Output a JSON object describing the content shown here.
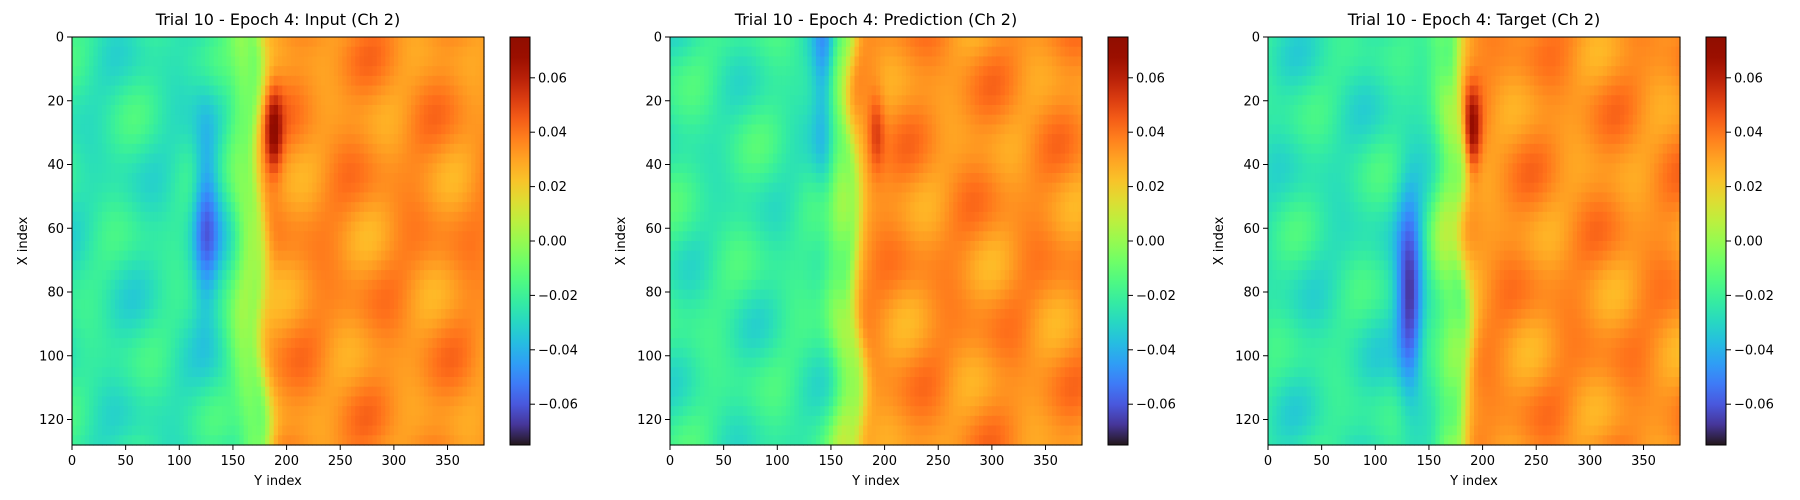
{
  "chart_data": [
    {
      "type": "heatmap",
      "title": "Trial 10 - Epoch 4: Input (Ch 2)",
      "xlabel": "Y index",
      "ylabel": "X index",
      "xlim": [
        0,
        384
      ],
      "ylim": [
        128,
        0
      ],
      "xticks": [
        "0",
        "50",
        "100",
        "150",
        "200",
        "250",
        "300",
        "350"
      ],
      "yticks": [
        "0",
        "20",
        "40",
        "60",
        "80",
        "100",
        "120"
      ],
      "colormap": "turbo",
      "colorbar": {
        "range": [
          -0.075,
          0.075
        ],
        "ticks": [
          "0.06",
          "0.04",
          "0.02",
          "0.00",
          "−0.02",
          "−0.04",
          "−0.06"
        ]
      },
      "features": {
        "background_left": -0.024,
        "background_right": 0.034,
        "front_position_y": 175,
        "front_tilt": 0.06,
        "negative_lobe": {
          "y": 125,
          "x": 55,
          "min": -0.055
        },
        "positive_peak": {
          "y": 188,
          "x": 30,
          "max": 0.068
        }
      }
    },
    {
      "type": "heatmap",
      "title": "Trial 10 - Epoch 4: Prediction (Ch 2)",
      "xlabel": "Y index",
      "ylabel": "X index",
      "xlim": [
        0,
        384
      ],
      "ylim": [
        128,
        0
      ],
      "xticks": [
        "0",
        "50",
        "100",
        "150",
        "200",
        "250",
        "300",
        "350"
      ],
      "yticks": [
        "0",
        "20",
        "40",
        "60",
        "80",
        "100",
        "120"
      ],
      "colormap": "turbo",
      "colorbar": {
        "range": [
          -0.075,
          0.075
        ],
        "ticks": [
          "0.06",
          "0.04",
          "0.02",
          "0.00",
          "−0.02",
          "−0.04",
          "−0.06"
        ]
      },
      "features": {
        "background_left": -0.022,
        "background_right": 0.034,
        "front_position_y": 172,
        "front_tilt": 0.08,
        "negative_lobe": {
          "y": 145,
          "x": 15,
          "min": -0.055
        },
        "positive_peak": {
          "y": 192,
          "x": 30,
          "max": 0.055
        }
      }
    },
    {
      "type": "heatmap",
      "title": "Trial 10 - Epoch 4: Target (Ch 2)",
      "xlabel": "Y index",
      "ylabel": "X index",
      "xlim": [
        0,
        384
      ],
      "ylim": [
        128,
        0
      ],
      "xticks": [
        "0",
        "50",
        "100",
        "150",
        "200",
        "250",
        "300",
        "350"
      ],
      "yticks": [
        "0",
        "20",
        "40",
        "60",
        "80",
        "100",
        "120"
      ],
      "colormap": "turbo",
      "colorbar": {
        "range": [
          -0.075,
          0.075
        ],
        "ticks": [
          "0.06",
          "0.04",
          "0.02",
          "0.00",
          "−0.02",
          "−0.04",
          "−0.06"
        ]
      },
      "features": {
        "background_left": -0.024,
        "background_right": 0.034,
        "front_position_y": 182,
        "front_tilt": 0.05,
        "negative_lobe": {
          "y": 132,
          "x": 82,
          "min": -0.068
        },
        "positive_peak": {
          "y": 190,
          "x": 30,
          "max": 0.072
        }
      }
    }
  ]
}
